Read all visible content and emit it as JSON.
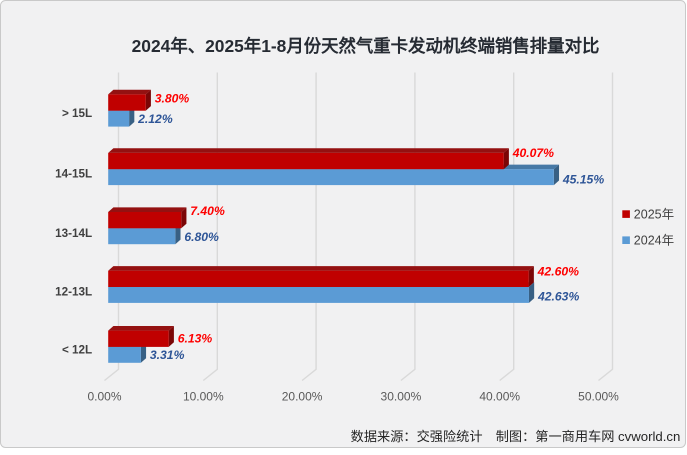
{
  "title": "2024年、2025年1-8月份天然气重卡发动机终端销售排量对比",
  "footer": "数据来源：交强险统计　制图：第一商用车网 cvworld.cn",
  "legend": [
    {
      "label": "2025年",
      "color": "#C00000"
    },
    {
      "label": "2024年",
      "color": "#5B9BD5"
    }
  ],
  "colors": {
    "panel_background": "#F1F1F2",
    "panel_border": "#C9C9C9",
    "gridline": "#D9D9D9",
    "title_text": "#262B33",
    "axis_text": "#595959",
    "category_text": "#404040",
    "legend_text": "#404040",
    "footer_text": "#262626",
    "red_front": "#C00000",
    "red_top": "#941111",
    "red_side": "#7B0606",
    "red_label": "#FE0000",
    "blue_front": "#5B9BD5",
    "blue_top": "#4779A6",
    "blue_side": "#386084",
    "blue_label": "#2E5597"
  },
  "chart_data": {
    "type": "bar",
    "orientation": "horizontal",
    "style": "3d",
    "title": "2024年、2025年1-8月份天然气重卡发动机终端销售排量对比",
    "categories": [
      "> 15L",
      "14-15L",
      "13-14L",
      "12-13L",
      "< 12L"
    ],
    "series": [
      {
        "name": "2025年",
        "color": "#C00000",
        "values": [
          3.8,
          40.07,
          7.4,
          42.6,
          6.13
        ],
        "labels": [
          "3.80%",
          "40.07%",
          "7.40%",
          "42.60%",
          "6.13%"
        ]
      },
      {
        "name": "2024年",
        "color": "#5B9BD5",
        "values": [
          2.12,
          45.15,
          6.8,
          42.63,
          3.31
        ],
        "labels": [
          "2.12%",
          "45.15%",
          "6.80%",
          "42.63%",
          "3.31%"
        ]
      }
    ],
    "x_ticks": [
      "0.00%",
      "10.00%",
      "20.00%",
      "30.00%",
      "40.00%",
      "50.00%"
    ],
    "xlim": [
      0,
      50
    ],
    "grid": true,
    "legend_position": "right",
    "source_note": "数据来源：交强险统计",
    "credit_note": "制图：第一商用车网 cvworld.cn"
  }
}
